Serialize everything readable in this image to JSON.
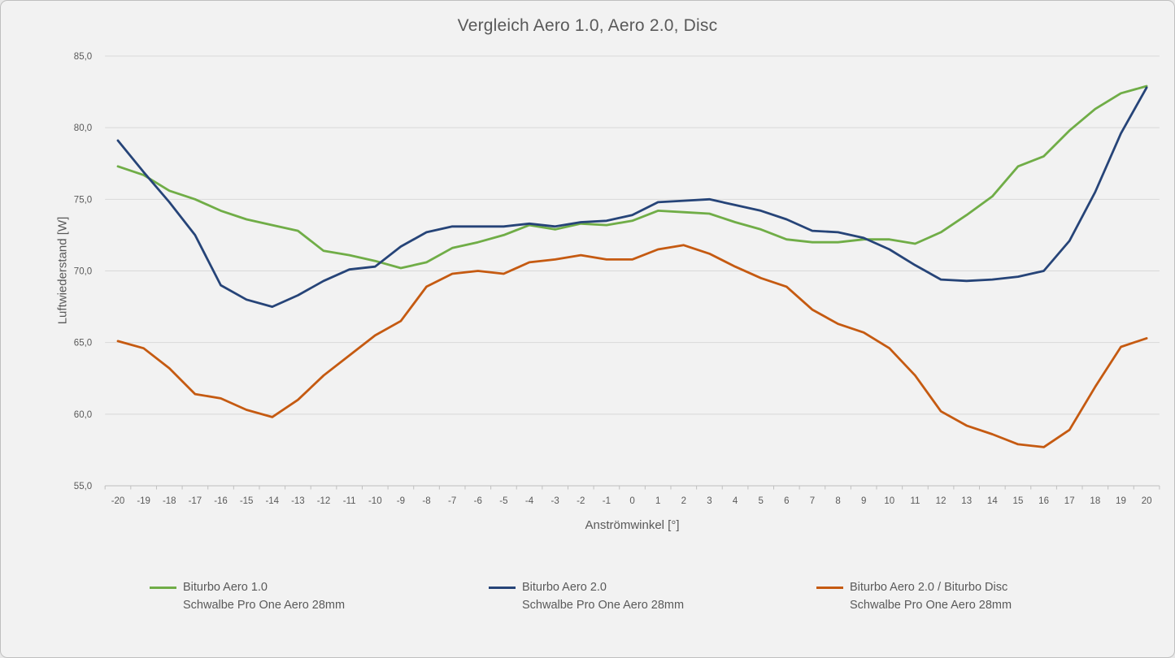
{
  "title": "Vergleich Aero 1.0, Aero 2.0, Disc",
  "colors": {
    "background": "#F2F2F2",
    "border": "#BFBFBF",
    "text": "#595959",
    "gridline": "#D9D9D9",
    "axis_line": "#BFBFBF",
    "series_green": "#70AD47",
    "series_blue": "#264478",
    "series_orange": "#C55A11"
  },
  "chart_data": {
    "type": "line",
    "title": "Vergleich Aero 1.0, Aero 2.0, Disc",
    "xlabel": "Anströmwinkel [°]",
    "ylabel": "Luftwiederstand [W]",
    "ylim": [
      55.0,
      85.0
    ],
    "ytick_step": 5.0,
    "ytick_labels": [
      "55,0",
      "60,0",
      "65,0",
      "70,0",
      "75,0",
      "80,0",
      "85,0"
    ],
    "grid": true,
    "legend_position": "bottom",
    "x": [
      -20,
      -19,
      -18,
      -17,
      -16,
      -15,
      -14,
      -13,
      -12,
      -11,
      -10,
      -9,
      -8,
      -7,
      -6,
      -5,
      -4,
      -3,
      -2,
      -1,
      0,
      1,
      2,
      3,
      4,
      5,
      6,
      7,
      8,
      9,
      10,
      11,
      12,
      13,
      14,
      15,
      16,
      17,
      18,
      19,
      20
    ],
    "series": [
      {
        "name": "Biturbo Aero 1.0",
        "subtitle": "Schwalbe Pro One Aero 28mm",
        "color": "#70AD47",
        "values": [
          77.3,
          76.7,
          75.6,
          75.0,
          74.2,
          73.6,
          73.2,
          72.8,
          71.4,
          71.1,
          70.7,
          70.2,
          70.6,
          71.6,
          72.0,
          72.5,
          73.2,
          72.9,
          73.3,
          73.2,
          73.5,
          74.2,
          74.1,
          74.0,
          73.4,
          72.9,
          72.2,
          72.0,
          72.0,
          72.2,
          72.2,
          71.9,
          72.7,
          73.9,
          75.2,
          77.3,
          78.0,
          79.8,
          81.3,
          82.4,
          82.9
        ]
      },
      {
        "name": "Biturbo Aero 2.0",
        "subtitle": "Schwalbe Pro One Aero 28mm",
        "color": "#264478",
        "values": [
          79.1,
          76.9,
          74.8,
          72.5,
          69.0,
          68.0,
          67.5,
          68.3,
          69.3,
          70.1,
          70.3,
          71.7,
          72.7,
          73.1,
          73.1,
          73.1,
          73.3,
          73.1,
          73.4,
          73.5,
          73.9,
          74.8,
          74.9,
          75.0,
          74.6,
          74.2,
          73.6,
          72.8,
          72.7,
          72.3,
          71.5,
          70.4,
          69.4,
          69.3,
          69.4,
          69.6,
          70.0,
          72.1,
          75.5,
          79.6,
          82.8
        ]
      },
      {
        "name": "Biturbo Aero 2.0 / Biturbo Disc",
        "subtitle": "Schwalbe Pro One Aero 28mm",
        "color": "#C55A11",
        "values": [
          65.1,
          64.6,
          63.2,
          61.4,
          61.1,
          60.3,
          59.8,
          61.0,
          62.7,
          64.1,
          65.5,
          66.5,
          68.9,
          69.8,
          70.0,
          69.8,
          70.6,
          70.8,
          71.1,
          70.8,
          70.8,
          71.5,
          71.8,
          71.2,
          70.3,
          69.5,
          68.9,
          67.3,
          66.3,
          65.7,
          64.6,
          62.7,
          60.2,
          59.2,
          58.6,
          57.9,
          57.7,
          58.9,
          61.9,
          64.7,
          65.3
        ]
      }
    ]
  }
}
